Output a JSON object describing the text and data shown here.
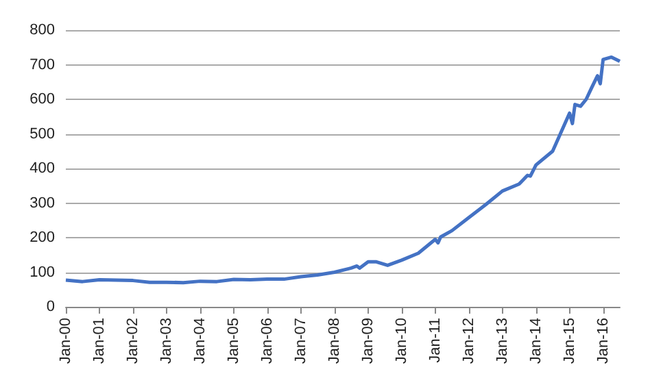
{
  "chart_data": {
    "type": "line",
    "x": [
      "2000-01",
      "2000-07",
      "2001-01",
      "2002-01",
      "2002-07",
      "2003-01",
      "2003-07",
      "2004-01",
      "2004-07",
      "2005-01",
      "2005-07",
      "2006-01",
      "2006-07",
      "2007-01",
      "2007-07",
      "2008-01",
      "2008-07",
      "2008-09",
      "2008-10",
      "2009-01",
      "2009-04",
      "2009-08",
      "2010-01",
      "2010-07",
      "2011-01",
      "2011-02",
      "2011-03",
      "2011-07",
      "2012-01",
      "2012-07",
      "2013-01",
      "2013-07",
      "2013-10",
      "2013-11",
      "2014-01",
      "2014-07",
      "2014-10",
      "2015-01",
      "2015-02",
      "2015-03",
      "2015-05",
      "2015-07",
      "2015-09",
      "2015-11",
      "2015-12",
      "2016-01",
      "2016-04",
      "2016-07"
    ],
    "series": [
      {
        "color": "#4472c4",
        "values": [
          77,
          73,
          78,
          76,
          71,
          71,
          70,
          74,
          73,
          79,
          78,
          80,
          80,
          87,
          92,
          100,
          112,
          118,
          112,
          130,
          130,
          120,
          135,
          155,
          195,
          185,
          202,
          220,
          258,
          295,
          335,
          355,
          380,
          378,
          410,
          450,
          505,
          560,
          530,
          585,
          580,
          600,
          635,
          668,
          645,
          715,
          722,
          710
        ]
      }
    ],
    "xlim": [
      "2000-01",
      "2016-07"
    ],
    "xticks": [
      {
        "value": "2000-01",
        "label": "Jan-00"
      },
      {
        "value": "2001-01",
        "label": "Jan-01"
      },
      {
        "value": "2002-01",
        "label": "Jan-02"
      },
      {
        "value": "2003-01",
        "label": "Jan-03"
      },
      {
        "value": "2004-01",
        "label": "Jan-04"
      },
      {
        "value": "2005-01",
        "label": "Jan-05"
      },
      {
        "value": "2006-01",
        "label": "Jan-06"
      },
      {
        "value": "2007-01",
        "label": "Jan-07"
      },
      {
        "value": "2008-01",
        "label": "Jan-08"
      },
      {
        "value": "2009-01",
        "label": "Jan-09"
      },
      {
        "value": "2010-01",
        "label": "Jan-10"
      },
      {
        "value": "2011-01",
        "label": "Jan-11"
      },
      {
        "value": "2012-01",
        "label": "Jan-12"
      },
      {
        "value": "2013-01",
        "label": "Jan-13"
      },
      {
        "value": "2014-01",
        "label": "Jan-14"
      },
      {
        "value": "2015-01",
        "label": "Jan-15"
      },
      {
        "value": "2016-01",
        "label": "Jan-16"
      }
    ],
    "ylim": [
      0,
      800
    ],
    "yticks": [
      0,
      100,
      200,
      300,
      400,
      500,
      600,
      700,
      800
    ],
    "grid": "y",
    "marker": "none",
    "line_style": "solid"
  }
}
